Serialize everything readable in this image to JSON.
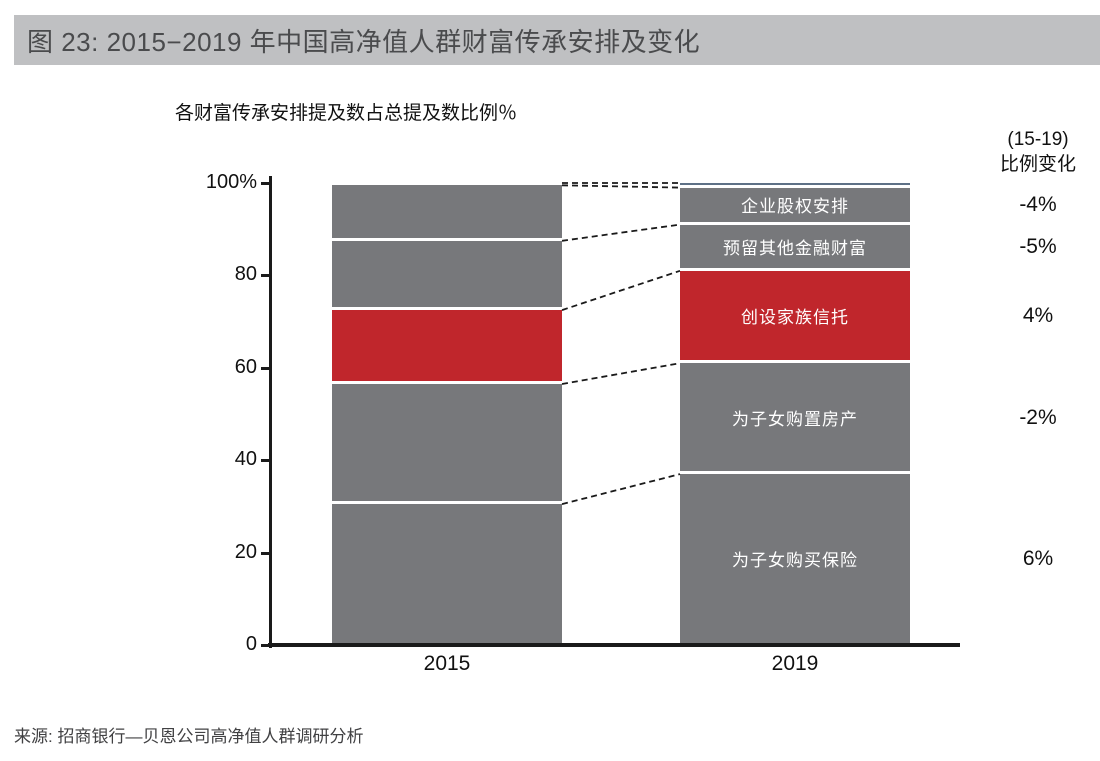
{
  "title": "图 23:  2015−2019 年中国高净值人群财富传承安排及变化",
  "source": "来源:  招商银行—贝恩公司高净值人群调研分析",
  "right_column": {
    "header_line1": "(15-19)",
    "header_line2": "比例变化"
  },
  "colors": {
    "banner_bg": "#bfc0c2",
    "gray_segment": "#77787b",
    "red_segment": "#c0262c",
    "slate_strip": "#5e7186",
    "light_strip": "#d9dadc"
  },
  "chart_data": {
    "type": "bar",
    "stacked": true,
    "title": "各财富传承安排提及数占总提及数比例％",
    "categories": [
      "2015",
      "2019"
    ],
    "ylim": [
      0,
      100
    ],
    "grid": false,
    "yticks": [
      {
        "label": "0",
        "value": 0
      },
      {
        "label": "20",
        "value": 20
      },
      {
        "label": "40",
        "value": 40
      },
      {
        "label": "60",
        "value": 60
      },
      {
        "label": "80",
        "value": 80
      },
      {
        "label": "100%",
        "value": 100
      }
    ],
    "top_strip": {
      "label": "",
      "values": [
        0.5,
        1
      ],
      "colors": [
        "#d9dadc",
        "#5e7186"
      ]
    },
    "series": [
      {
        "label": "企业股权安排",
        "values": [
          12,
          8
        ],
        "color": "#77787b",
        "change": "-4%"
      },
      {
        "label": "预留其他金融财富",
        "values": [
          15,
          10
        ],
        "color": "#77787b",
        "change": "-5%"
      },
      {
        "label": "创设家族信托",
        "values": [
          16,
          20
        ],
        "color": "#c0262c",
        "change": "4%"
      },
      {
        "label": "为子女购置房产",
        "values": [
          26,
          24
        ],
        "color": "#77787b",
        "change": "-2%"
      },
      {
        "label": "为子女购买保险",
        "values": [
          30.5,
          37
        ],
        "color": "#77787b",
        "change": "6%"
      }
    ]
  }
}
